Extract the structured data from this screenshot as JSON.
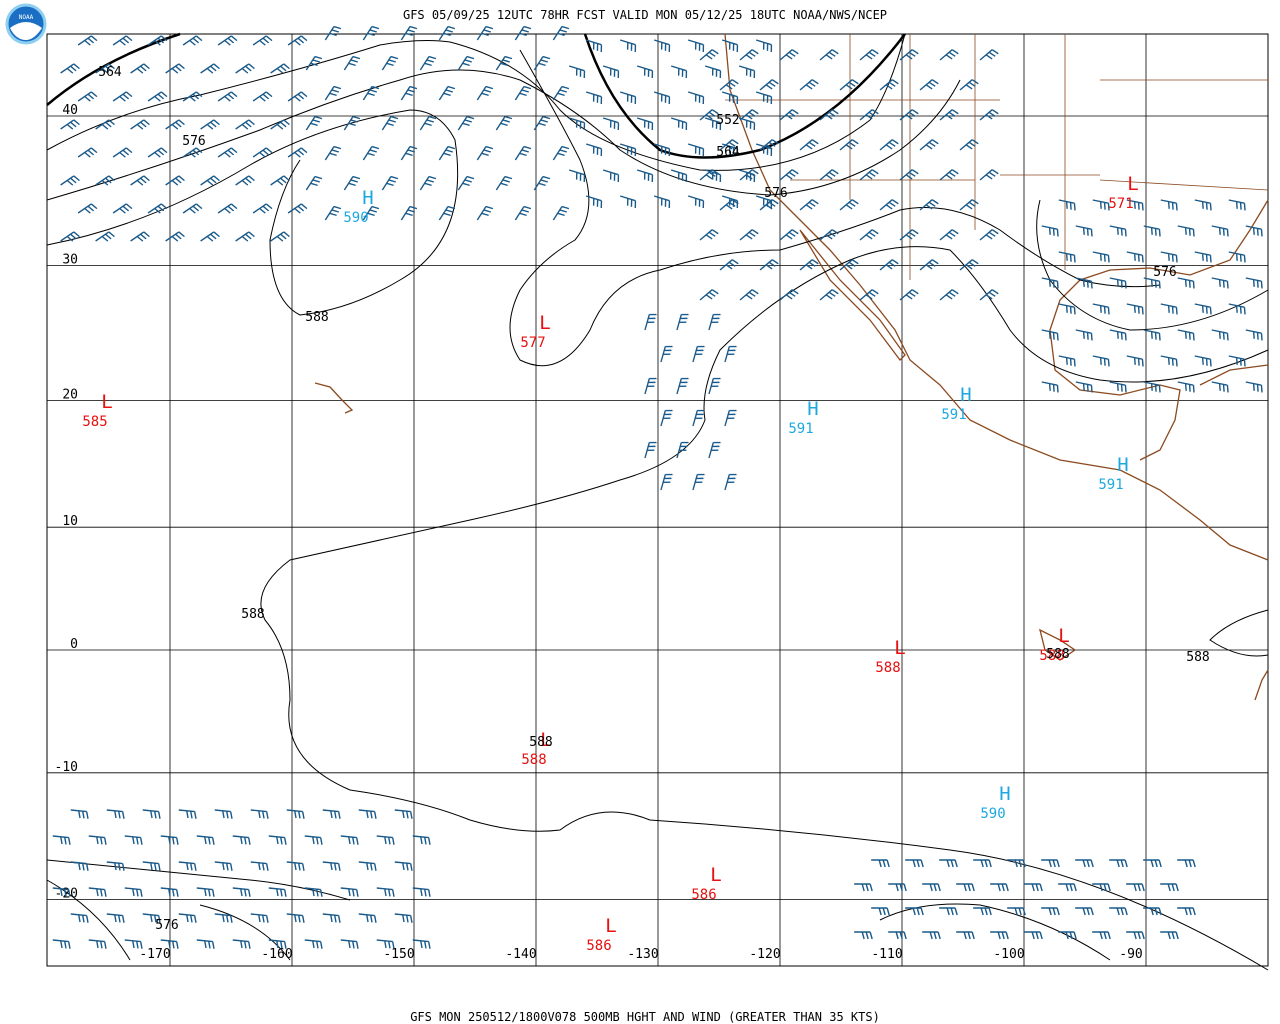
{
  "header": {
    "title": "GFS 05/09/25 12UTC 78HR FCST VALID MON 05/12/25 18UTC NOAA/NWS/NCEP"
  },
  "footer": {
    "caption": "GFS MON 250512/1800V078 500MB HGHT AND WIND (GREATER THAN 35 KTS)"
  },
  "logo": {
    "label": "NOAA"
  },
  "grid": {
    "longitudes": [
      -170,
      -160,
      -150,
      -140,
      -130,
      -120,
      -110,
      -100,
      -90
    ],
    "latitudes": [
      40,
      30,
      20,
      10,
      0,
      -10,
      -20
    ]
  },
  "centers": [
    {
      "type": "H",
      "value": "590"
    },
    {
      "type": "L",
      "value": "577"
    },
    {
      "type": "L",
      "value": "585"
    },
    {
      "type": "H",
      "value": "591"
    },
    {
      "type": "H",
      "value": "591"
    },
    {
      "type": "L",
      "value": "571"
    },
    {
      "type": "H",
      "value": "591"
    },
    {
      "type": "L",
      "value": "588"
    },
    {
      "type": "L",
      "value": "588"
    },
    {
      "type": "L",
      "value": "588"
    },
    {
      "type": "H",
      "value": "590"
    },
    {
      "type": "L",
      "value": "586"
    },
    {
      "type": "L",
      "value": "586"
    }
  ],
  "contour_labels": [
    "564",
    "576",
    "588",
    "552",
    "564",
    "576",
    "576",
    "588",
    "588",
    "588",
    "588",
    "576"
  ]
}
